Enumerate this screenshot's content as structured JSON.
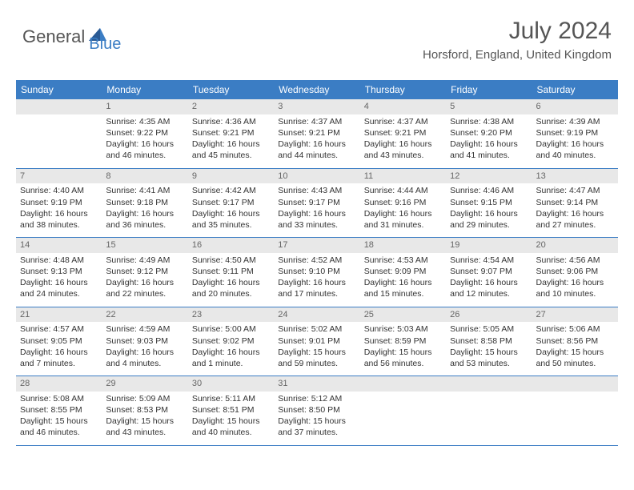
{
  "brand": {
    "part1": "General",
    "part2": "Blue"
  },
  "title": "July 2024",
  "location": "Horsford, England, United Kingdom",
  "colors": {
    "header_bg": "#3b7dc4",
    "header_text": "#ffffff",
    "daynum_bg": "#e8e8e8",
    "text": "#333333",
    "rule": "#3b7dc4"
  },
  "weekdays": [
    "Sunday",
    "Monday",
    "Tuesday",
    "Wednesday",
    "Thursday",
    "Friday",
    "Saturday"
  ],
  "weeks": [
    [
      null,
      {
        "n": "1",
        "sr": "Sunrise: 4:35 AM",
        "ss": "Sunset: 9:22 PM",
        "dl": "Daylight: 16 hours and 46 minutes."
      },
      {
        "n": "2",
        "sr": "Sunrise: 4:36 AM",
        "ss": "Sunset: 9:21 PM",
        "dl": "Daylight: 16 hours and 45 minutes."
      },
      {
        "n": "3",
        "sr": "Sunrise: 4:37 AM",
        "ss": "Sunset: 9:21 PM",
        "dl": "Daylight: 16 hours and 44 minutes."
      },
      {
        "n": "4",
        "sr": "Sunrise: 4:37 AM",
        "ss": "Sunset: 9:21 PM",
        "dl": "Daylight: 16 hours and 43 minutes."
      },
      {
        "n": "5",
        "sr": "Sunrise: 4:38 AM",
        "ss": "Sunset: 9:20 PM",
        "dl": "Daylight: 16 hours and 41 minutes."
      },
      {
        "n": "6",
        "sr": "Sunrise: 4:39 AM",
        "ss": "Sunset: 9:19 PM",
        "dl": "Daylight: 16 hours and 40 minutes."
      }
    ],
    [
      {
        "n": "7",
        "sr": "Sunrise: 4:40 AM",
        "ss": "Sunset: 9:19 PM",
        "dl": "Daylight: 16 hours and 38 minutes."
      },
      {
        "n": "8",
        "sr": "Sunrise: 4:41 AM",
        "ss": "Sunset: 9:18 PM",
        "dl": "Daylight: 16 hours and 36 minutes."
      },
      {
        "n": "9",
        "sr": "Sunrise: 4:42 AM",
        "ss": "Sunset: 9:17 PM",
        "dl": "Daylight: 16 hours and 35 minutes."
      },
      {
        "n": "10",
        "sr": "Sunrise: 4:43 AM",
        "ss": "Sunset: 9:17 PM",
        "dl": "Daylight: 16 hours and 33 minutes."
      },
      {
        "n": "11",
        "sr": "Sunrise: 4:44 AM",
        "ss": "Sunset: 9:16 PM",
        "dl": "Daylight: 16 hours and 31 minutes."
      },
      {
        "n": "12",
        "sr": "Sunrise: 4:46 AM",
        "ss": "Sunset: 9:15 PM",
        "dl": "Daylight: 16 hours and 29 minutes."
      },
      {
        "n": "13",
        "sr": "Sunrise: 4:47 AM",
        "ss": "Sunset: 9:14 PM",
        "dl": "Daylight: 16 hours and 27 minutes."
      }
    ],
    [
      {
        "n": "14",
        "sr": "Sunrise: 4:48 AM",
        "ss": "Sunset: 9:13 PM",
        "dl": "Daylight: 16 hours and 24 minutes."
      },
      {
        "n": "15",
        "sr": "Sunrise: 4:49 AM",
        "ss": "Sunset: 9:12 PM",
        "dl": "Daylight: 16 hours and 22 minutes."
      },
      {
        "n": "16",
        "sr": "Sunrise: 4:50 AM",
        "ss": "Sunset: 9:11 PM",
        "dl": "Daylight: 16 hours and 20 minutes."
      },
      {
        "n": "17",
        "sr": "Sunrise: 4:52 AM",
        "ss": "Sunset: 9:10 PM",
        "dl": "Daylight: 16 hours and 17 minutes."
      },
      {
        "n": "18",
        "sr": "Sunrise: 4:53 AM",
        "ss": "Sunset: 9:09 PM",
        "dl": "Daylight: 16 hours and 15 minutes."
      },
      {
        "n": "19",
        "sr": "Sunrise: 4:54 AM",
        "ss": "Sunset: 9:07 PM",
        "dl": "Daylight: 16 hours and 12 minutes."
      },
      {
        "n": "20",
        "sr": "Sunrise: 4:56 AM",
        "ss": "Sunset: 9:06 PM",
        "dl": "Daylight: 16 hours and 10 minutes."
      }
    ],
    [
      {
        "n": "21",
        "sr": "Sunrise: 4:57 AM",
        "ss": "Sunset: 9:05 PM",
        "dl": "Daylight: 16 hours and 7 minutes."
      },
      {
        "n": "22",
        "sr": "Sunrise: 4:59 AM",
        "ss": "Sunset: 9:03 PM",
        "dl": "Daylight: 16 hours and 4 minutes."
      },
      {
        "n": "23",
        "sr": "Sunrise: 5:00 AM",
        "ss": "Sunset: 9:02 PM",
        "dl": "Daylight: 16 hours and 1 minute."
      },
      {
        "n": "24",
        "sr": "Sunrise: 5:02 AM",
        "ss": "Sunset: 9:01 PM",
        "dl": "Daylight: 15 hours and 59 minutes."
      },
      {
        "n": "25",
        "sr": "Sunrise: 5:03 AM",
        "ss": "Sunset: 8:59 PM",
        "dl": "Daylight: 15 hours and 56 minutes."
      },
      {
        "n": "26",
        "sr": "Sunrise: 5:05 AM",
        "ss": "Sunset: 8:58 PM",
        "dl": "Daylight: 15 hours and 53 minutes."
      },
      {
        "n": "27",
        "sr": "Sunrise: 5:06 AM",
        "ss": "Sunset: 8:56 PM",
        "dl": "Daylight: 15 hours and 50 minutes."
      }
    ],
    [
      {
        "n": "28",
        "sr": "Sunrise: 5:08 AM",
        "ss": "Sunset: 8:55 PM",
        "dl": "Daylight: 15 hours and 46 minutes."
      },
      {
        "n": "29",
        "sr": "Sunrise: 5:09 AM",
        "ss": "Sunset: 8:53 PM",
        "dl": "Daylight: 15 hours and 43 minutes."
      },
      {
        "n": "30",
        "sr": "Sunrise: 5:11 AM",
        "ss": "Sunset: 8:51 PM",
        "dl": "Daylight: 15 hours and 40 minutes."
      },
      {
        "n": "31",
        "sr": "Sunrise: 5:12 AM",
        "ss": "Sunset: 8:50 PM",
        "dl": "Daylight: 15 hours and 37 minutes."
      },
      null,
      null,
      null
    ]
  ]
}
